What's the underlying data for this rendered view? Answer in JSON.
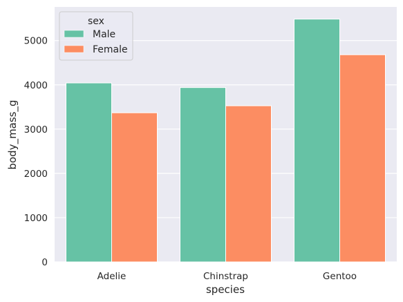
{
  "chart_data": {
    "type": "bar",
    "categories": [
      "Adelie",
      "Chinstrap",
      "Gentoo"
    ],
    "series": [
      {
        "name": "Male",
        "values": [
          4043,
          3939,
          5485
        ],
        "color": "#66c2a5"
      },
      {
        "name": "Female",
        "values": [
          3369,
          3527,
          4680
        ],
        "color": "#fc8d62"
      }
    ],
    "xlabel": "species",
    "ylabel": "body_mass_g",
    "ylim": [
      0,
      5760
    ],
    "yticks": [
      "0",
      "1000",
      "2000",
      "3000",
      "4000",
      "5000"
    ],
    "legend": {
      "title": "sex",
      "placement": "top-left"
    },
    "grid": true,
    "background": "#eaeaf2"
  }
}
